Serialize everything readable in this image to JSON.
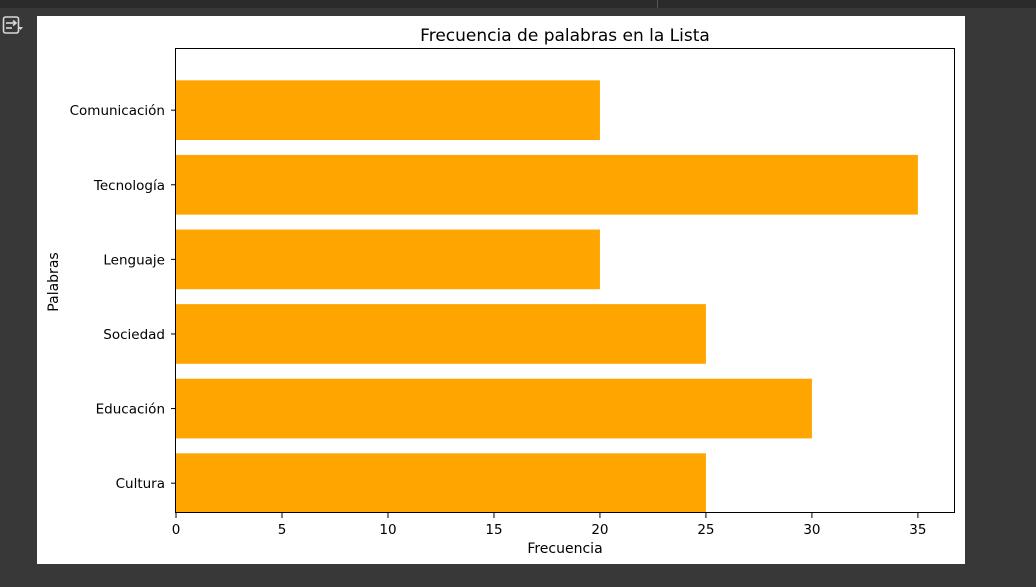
{
  "toolbar": {
    "output_icon": "output-toggle-icon"
  },
  "colors": {
    "bar": "#FFA500",
    "axes": "#000000",
    "background": "#FFFFFF"
  },
  "chart_data": {
    "type": "bar",
    "orientation": "horizontal",
    "title": "Frecuencia de palabras en la Lista",
    "xlabel": "Frecuencia",
    "ylabel": "Palabras",
    "categories": [
      "Cultura",
      "Educación",
      "Sociedad",
      "Lenguaje",
      "Tecnología",
      "Comunicación"
    ],
    "values": [
      25,
      30,
      25,
      20,
      35,
      20
    ],
    "xlim": [
      0,
      36.75
    ],
    "xticks": [
      0,
      5,
      10,
      15,
      20,
      25,
      30,
      35
    ],
    "grid": false,
    "legend": "none"
  }
}
